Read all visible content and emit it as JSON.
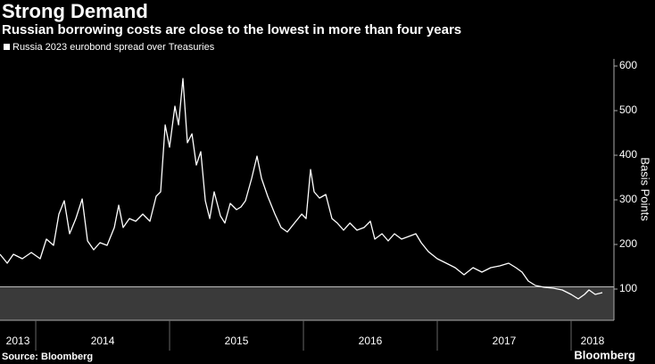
{
  "chart_data": {
    "type": "line",
    "title": "Strong Demand",
    "subtitle": "Russian borrowing costs are close to the lowest in more than four years",
    "y_label": "Basis Points",
    "source": "Source: Bloomberg",
    "brand": "Bloomberg",
    "xlim": [
      2013.733,
      2018.32
    ],
    "xticks": [
      2013,
      2014,
      2015,
      2016,
      2017,
      2018
    ],
    "ylim": [
      30,
      616
    ],
    "yticks": [
      100,
      200,
      300,
      400,
      500,
      600
    ],
    "shaded_below": 105,
    "series": [
      {
        "name": "Russia 2023 eurobond spread over Treasuries",
        "color": "#ffffff",
        "x": [
          2013.733,
          2013.787,
          2013.833,
          2013.9,
          2013.967,
          2014.033,
          2014.08,
          2014.133,
          2014.173,
          2014.213,
          2014.253,
          2014.3,
          2014.347,
          2014.387,
          2014.433,
          2014.48,
          2014.533,
          2014.587,
          2014.62,
          2014.653,
          2014.7,
          2014.747,
          2014.8,
          2014.853,
          2014.9,
          2014.933,
          2014.967,
          2015.0,
          2015.04,
          2015.067,
          2015.1,
          2015.133,
          2015.167,
          2015.2,
          2015.233,
          2015.267,
          2015.3,
          2015.333,
          2015.38,
          2015.413,
          2015.453,
          2015.5,
          2015.533,
          2015.567,
          2015.613,
          2015.653,
          2015.687,
          2015.733,
          2015.787,
          2015.833,
          2015.88,
          2015.933,
          2015.987,
          2016.02,
          2016.053,
          2016.08,
          2016.12,
          2016.167,
          2016.213,
          2016.253,
          2016.3,
          2016.347,
          2016.4,
          2016.453,
          2016.5,
          2016.533,
          2016.587,
          2016.633,
          2016.68,
          2016.733,
          2016.787,
          2016.84,
          2016.88,
          2016.933,
          2017.0,
          2017.067,
          2017.133,
          2017.2,
          2017.267,
          2017.333,
          2017.4,
          2017.467,
          2017.533,
          2017.587,
          2017.633,
          2017.68,
          2017.733,
          2017.8,
          2017.867,
          2017.933,
          2018.0,
          2018.053,
          2018.1,
          2018.133,
          2018.18,
          2018.233
        ],
        "values": [
          178,
          158,
          178,
          168,
          182,
          168,
          212,
          198,
          268,
          298,
          224,
          258,
          302,
          208,
          188,
          204,
          198,
          238,
          288,
          238,
          258,
          252,
          268,
          252,
          308,
          318,
          468,
          418,
          510,
          468,
          572,
          428,
          448,
          378,
          408,
          298,
          258,
          318,
          264,
          248,
          292,
          278,
          284,
          298,
          348,
          398,
          348,
          308,
          268,
          238,
          228,
          248,
          268,
          258,
          368,
          318,
          304,
          312,
          258,
          248,
          232,
          248,
          232,
          238,
          252,
          212,
          224,
          208,
          224,
          212,
          218,
          224,
          204,
          184,
          168,
          158,
          148,
          132,
          148,
          138,
          148,
          152,
          158,
          148,
          138,
          118,
          108,
          104,
          102,
          98,
          88,
          78,
          88,
          98,
          88,
          92
        ]
      }
    ]
  }
}
